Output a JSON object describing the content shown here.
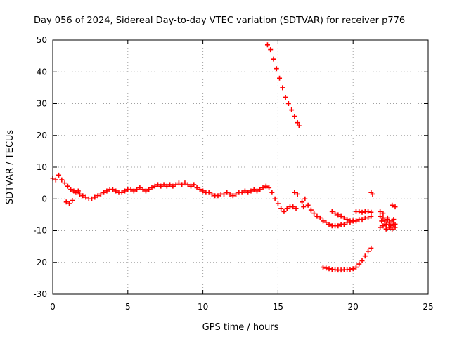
{
  "chart_data": {
    "type": "scatter",
    "title": "Day 056 of 2024, Sidereal Day-to-day VTEC variation (SDTVAR) for receiver p776",
    "xlabel": "GPS time / hours",
    "ylabel": "SDTVAR / TECUs",
    "xlim": [
      0,
      25
    ],
    "ylim": [
      -30,
      50
    ],
    "xticks": [
      0,
      5,
      10,
      15,
      20,
      25
    ],
    "yticks": [
      -30,
      -20,
      -10,
      0,
      10,
      20,
      30,
      40,
      50
    ],
    "grid": true,
    "legend": "none",
    "marker": "plus",
    "color": "#ff0000",
    "series": [
      {
        "name": "main-trace",
        "x": [
          0.0,
          0.2,
          0.4,
          0.6,
          0.8,
          1.0,
          1.2,
          1.4,
          1.6,
          1.8,
          2.0,
          2.2,
          2.4,
          2.6,
          2.8,
          3.0,
          3.2,
          3.4,
          3.6,
          3.8,
          4.0,
          4.2,
          4.4,
          4.6,
          4.8,
          5.0,
          5.2,
          5.4,
          5.6,
          5.8,
          6.0,
          6.2,
          6.4,
          6.6,
          6.8,
          7.0,
          7.2,
          7.4,
          7.6,
          7.8,
          8.0,
          8.2,
          8.4,
          8.6,
          8.8,
          9.0,
          9.2,
          9.4,
          9.6,
          9.8,
          10.0,
          10.2,
          10.4,
          10.6,
          10.8,
          11.0,
          11.2,
          11.4,
          11.6,
          11.8,
          12.0,
          12.2,
          12.4,
          12.6,
          12.8,
          13.0,
          13.2,
          13.4,
          13.6,
          13.8,
          14.0,
          14.2,
          14.4,
          14.6,
          14.8,
          15.0,
          15.2,
          15.4,
          15.6,
          15.8,
          16.0,
          16.2
        ],
        "y": [
          6.5,
          6.0,
          7.5,
          6.0,
          5.0,
          4.0,
          3.0,
          2.5,
          2.0,
          1.5,
          1.0,
          0.5,
          0.0,
          0.0,
          0.5,
          1.0,
          1.5,
          2.0,
          2.5,
          3.0,
          3.0,
          2.5,
          2.0,
          2.0,
          2.5,
          3.0,
          3.0,
          2.5,
          3.0,
          3.5,
          3.0,
          2.5,
          3.0,
          3.5,
          4.0,
          4.5,
          4.0,
          4.5,
          4.0,
          4.5,
          4.0,
          4.5,
          5.0,
          4.5,
          5.0,
          4.5,
          4.0,
          4.5,
          3.5,
          3.0,
          2.5,
          2.0,
          2.0,
          1.5,
          1.0,
          1.0,
          1.5,
          1.5,
          2.0,
          1.5,
          1.0,
          1.5,
          2.0,
          2.0,
          2.5,
          2.0,
          2.5,
          3.0,
          2.5,
          3.0,
          3.5,
          4.0,
          3.5,
          2.0,
          0.0,
          -1.5,
          -3.0,
          -4.0,
          -3.0,
          -2.5,
          -2.5,
          -3.0
        ]
      },
      {
        "name": "descending-arc",
        "x": [
          14.3,
          14.5,
          14.7,
          14.9,
          15.1,
          15.3,
          15.5,
          15.7,
          15.9,
          16.1,
          16.3,
          16.4
        ],
        "y": [
          48.5,
          47.0,
          44.0,
          41.0,
          38.0,
          35.0,
          32.0,
          30.0,
          28.0,
          26.0,
          24.0,
          23.0
        ]
      },
      {
        "name": "lower-arc",
        "x": [
          18.0,
          18.2,
          18.4,
          18.6,
          18.8,
          19.0,
          19.2,
          19.4,
          19.6,
          19.8,
          20.0,
          20.2,
          20.4,
          20.6,
          20.8,
          21.0,
          21.2
        ],
        "y": [
          -21.5,
          -21.8,
          -22.0,
          -22.2,
          -22.3,
          -22.4,
          -22.4,
          -22.3,
          -22.3,
          -22.2,
          -22.0,
          -21.5,
          -20.5,
          -19.5,
          -18.0,
          -16.5,
          -15.5
        ]
      },
      {
        "name": "late-cluster",
        "x": [
          16.8,
          17.0,
          17.2,
          17.4,
          17.6,
          17.8,
          18.0,
          18.2,
          18.4,
          18.6,
          18.8,
          19.0,
          19.2,
          19.4,
          19.6,
          19.8,
          20.0,
          20.2,
          20.4,
          20.6,
          20.8,
          21.0,
          21.2
        ],
        "y": [
          0.0,
          -2.0,
          -3.5,
          -4.5,
          -5.5,
          -6.0,
          -7.0,
          -7.5,
          -8.0,
          -8.5,
          -8.5,
          -8.5,
          -8.0,
          -8.0,
          -7.5,
          -7.5,
          -7.0,
          -7.0,
          -6.5,
          -6.5,
          -6.0,
          -6.0,
          -5.5
        ]
      },
      {
        "name": "mid-band",
        "x": [
          18.6,
          18.8,
          19.0,
          19.2,
          19.4,
          19.6,
          19.8,
          20.0
        ],
        "y": [
          -4.0,
          -4.5,
          -5.0,
          -5.5,
          -6.0,
          -6.5,
          -7.0,
          -7.0
        ]
      },
      {
        "name": "band-upper",
        "x": [
          20.2,
          20.4,
          20.6,
          20.8,
          21.0,
          21.2
        ],
        "y": [
          -4.0,
          -4.0,
          -4.2,
          -4.0,
          -4.0,
          -4.2
        ]
      },
      {
        "name": "right-block",
        "x": [
          21.8,
          22.0,
          22.1,
          22.2,
          22.3,
          22.4,
          22.5,
          22.6,
          22.7,
          22.8,
          21.8,
          22.0,
          22.2,
          22.4,
          22.6,
          22.8,
          21.9,
          22.3,
          22.7
        ],
        "y": [
          -5.5,
          -6.0,
          -7.0,
          -8.0,
          -6.5,
          -7.5,
          -8.5,
          -7.0,
          -8.0,
          -9.0,
          -9.0,
          -8.5,
          -9.5,
          -9.0,
          -9.5,
          -8.0,
          -7.0,
          -6.0,
          -6.5
        ]
      },
      {
        "name": "sparse-points",
        "x": [
          0.9,
          1.1,
          1.3,
          1.5,
          1.7,
          16.1,
          16.3,
          16.6,
          16.7,
          21.2,
          21.3,
          22.6,
          22.8,
          21.8,
          22.0
        ],
        "y": [
          -1.0,
          -1.5,
          -0.5,
          2.0,
          2.5,
          2.0,
          1.5,
          -1.0,
          -2.5,
          2.0,
          1.5,
          -2.0,
          -2.5,
          -4.0,
          -4.5
        ]
      }
    ]
  }
}
